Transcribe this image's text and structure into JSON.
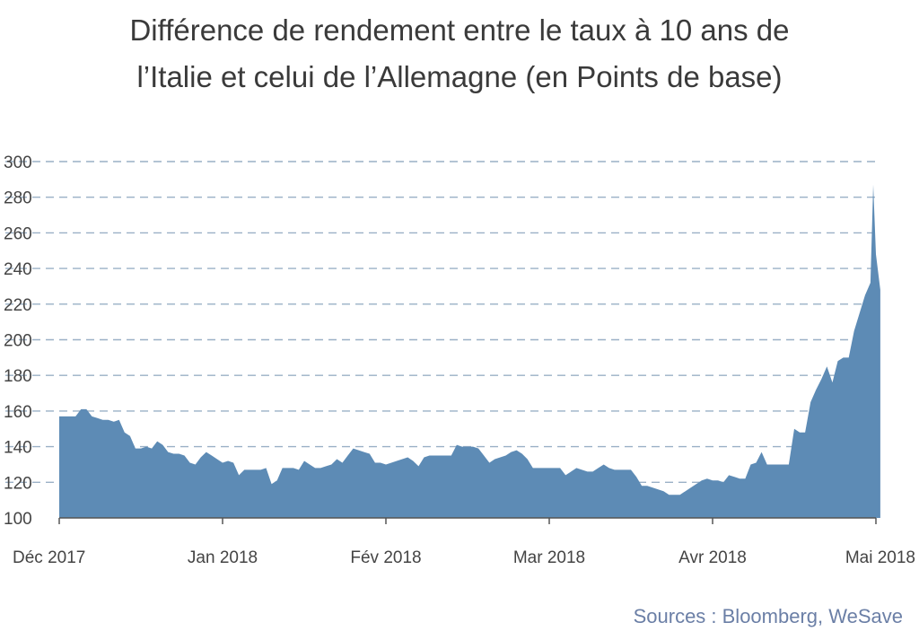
{
  "title_line1": "Différence de rendement entre le taux à 10 ans de",
  "title_line2": "l’Italie et celui de l’Allemagne (en Points de base)",
  "source": "Sources : Bloomberg, WeSave",
  "colors": {
    "area": "#5d8bb5",
    "grid": "#9ab0c6",
    "axis": "#555555",
    "text": "#3a3a3a",
    "source": "#6b7fa6"
  },
  "chart_data": {
    "type": "area",
    "ylim": [
      100,
      300
    ],
    "yticks": [
      100,
      120,
      140,
      160,
      180,
      200,
      220,
      240,
      260,
      280,
      300
    ],
    "xticks": [
      "Déc 2017",
      "Jan 2018",
      "Fév 2018",
      "Mar 2018",
      "Avr 2018",
      "Mai 2018"
    ],
    "grid": true,
    "x_range": [
      0,
      150
    ],
    "xtick_positions": [
      0,
      30,
      60,
      90,
      120,
      150
    ],
    "values": [
      [
        0,
        157
      ],
      [
        2,
        157
      ],
      [
        3,
        157
      ],
      [
        4,
        161
      ],
      [
        5,
        161
      ],
      [
        6,
        157
      ],
      [
        7,
        156
      ],
      [
        8,
        155
      ],
      [
        9,
        155
      ],
      [
        10,
        154
      ],
      [
        11,
        155
      ],
      [
        12,
        148
      ],
      [
        13,
        146
      ],
      [
        14,
        139
      ],
      [
        15,
        139
      ],
      [
        16,
        140
      ],
      [
        17,
        139
      ],
      [
        18,
        143
      ],
      [
        19,
        141
      ],
      [
        20,
        137
      ],
      [
        21,
        136
      ],
      [
        22,
        136
      ],
      [
        23,
        135
      ],
      [
        24,
        131
      ],
      [
        25,
        130
      ],
      [
        26,
        134
      ],
      [
        27,
        137
      ],
      [
        28,
        135
      ],
      [
        29,
        133
      ],
      [
        30,
        131
      ],
      [
        31,
        132
      ],
      [
        32,
        131
      ],
      [
        33,
        124
      ],
      [
        34,
        127
      ],
      [
        35,
        127
      ],
      [
        36,
        127
      ],
      [
        37,
        127
      ],
      [
        38,
        128
      ],
      [
        39,
        119
      ],
      [
        40,
        121
      ],
      [
        41,
        128
      ],
      [
        42,
        128
      ],
      [
        43,
        128
      ],
      [
        44,
        127
      ],
      [
        45,
        132
      ],
      [
        46,
        130
      ],
      [
        47,
        128
      ],
      [
        48,
        128
      ],
      [
        49,
        129
      ],
      [
        50,
        130
      ],
      [
        51,
        133
      ],
      [
        52,
        131
      ],
      [
        53,
        135
      ],
      [
        54,
        139
      ],
      [
        55,
        138
      ],
      [
        56,
        137
      ],
      [
        57,
        136
      ],
      [
        58,
        131
      ],
      [
        59,
        131
      ],
      [
        60,
        130
      ],
      [
        61,
        131
      ],
      [
        62,
        132
      ],
      [
        63,
        133
      ],
      [
        64,
        134
      ],
      [
        65,
        132
      ],
      [
        66,
        129
      ],
      [
        67,
        134
      ],
      [
        68,
        135
      ],
      [
        69,
        135
      ],
      [
        70,
        135
      ],
      [
        71,
        135
      ],
      [
        72,
        135
      ],
      [
        73,
        141
      ],
      [
        74,
        140
      ],
      [
        75,
        140
      ],
      [
        76,
        140
      ],
      [
        77,
        139
      ],
      [
        78,
        135
      ],
      [
        79,
        131
      ],
      [
        80,
        133
      ],
      [
        81,
        134
      ],
      [
        82,
        135
      ],
      [
        83,
        137
      ],
      [
        84,
        138
      ],
      [
        85,
        136
      ],
      [
        86,
        133
      ],
      [
        87,
        128
      ],
      [
        88,
        128
      ],
      [
        89,
        128
      ],
      [
        90,
        128
      ],
      [
        91,
        128
      ],
      [
        92,
        128
      ],
      [
        93,
        124
      ],
      [
        94,
        126
      ],
      [
        95,
        128
      ],
      [
        96,
        127
      ],
      [
        97,
        126
      ],
      [
        98,
        126
      ],
      [
        99,
        128
      ],
      [
        100,
        130
      ],
      [
        101,
        128
      ],
      [
        102,
        127
      ],
      [
        103,
        127
      ],
      [
        104,
        127
      ],
      [
        105,
        127
      ],
      [
        106,
        123
      ],
      [
        107,
        118
      ],
      [
        108,
        118
      ],
      [
        109,
        117
      ],
      [
        110,
        116
      ],
      [
        111,
        115
      ],
      [
        112,
        113
      ],
      [
        113,
        113
      ],
      [
        114,
        113
      ],
      [
        115,
        115
      ],
      [
        116,
        117
      ],
      [
        117,
        119
      ],
      [
        118,
        121
      ],
      [
        119,
        122
      ],
      [
        120,
        121
      ],
      [
        121,
        121
      ],
      [
        122,
        120
      ],
      [
        123,
        124
      ],
      [
        124,
        123
      ],
      [
        125,
        122
      ],
      [
        126,
        122
      ],
      [
        127,
        130
      ],
      [
        128,
        131
      ],
      [
        129,
        137
      ],
      [
        130,
        130
      ],
      [
        131,
        130
      ],
      [
        132,
        130
      ],
      [
        133,
        130
      ],
      [
        134,
        130
      ],
      [
        135,
        150
      ],
      [
        136,
        148
      ],
      [
        137,
        148
      ],
      [
        138,
        165
      ],
      [
        139,
        172
      ],
      [
        140,
        178
      ],
      [
        141,
        185
      ],
      [
        142,
        176
      ],
      [
        143,
        188
      ],
      [
        144,
        190
      ],
      [
        145,
        190
      ],
      [
        146,
        205
      ],
      [
        147,
        215
      ],
      [
        148,
        225
      ],
      [
        149,
        232
      ],
      [
        149.5,
        287
      ],
      [
        150,
        248
      ],
      [
        150.8,
        228
      ]
    ]
  }
}
